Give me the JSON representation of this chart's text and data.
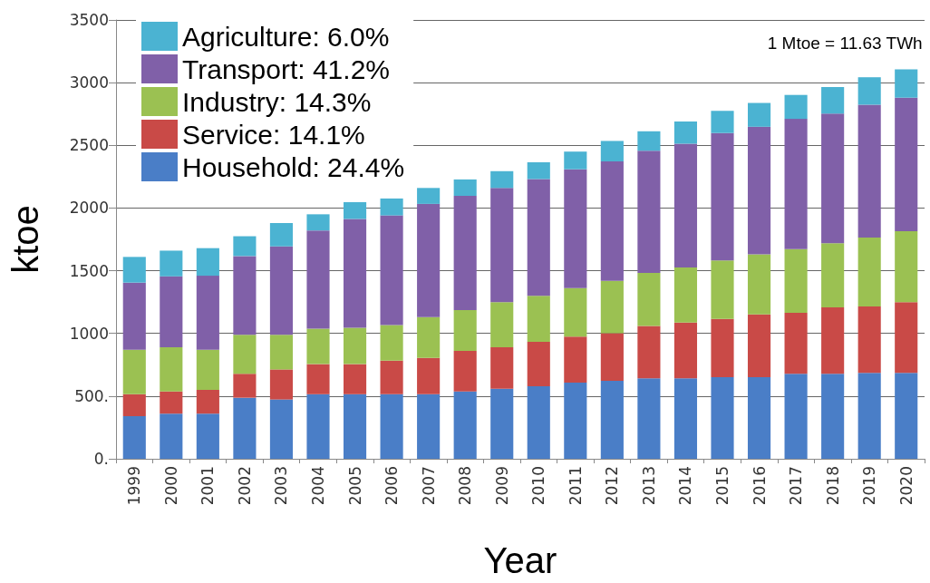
{
  "chart_data": {
    "type": "bar",
    "stacked": true,
    "xlabel": "Year",
    "ylabel": "ktoe",
    "annotations": [
      "1 Mtoe = 11.63 TWh"
    ],
    "categories": [
      "1999",
      "2000",
      "2001",
      "2002",
      "2003",
      "2004",
      "2005",
      "2006",
      "2007",
      "2008",
      "2009",
      "2010",
      "2011",
      "2012",
      "2013",
      "2014",
      "2015",
      "2016",
      "2017",
      "2018",
      "2019",
      "2020"
    ],
    "series": [
      {
        "name": "Household: 24.4%",
        "color": "#4a7ec7",
        "values": [
          340,
          360,
          360,
          487,
          473,
          515,
          515,
          515,
          515,
          537,
          558,
          579,
          607,
          621,
          642,
          642,
          650,
          650,
          678,
          678,
          685,
          685
        ]
      },
      {
        "name": "Service: 14.1%",
        "color": "#c94a47",
        "values": [
          175,
          177,
          190,
          191,
          240,
          240,
          240,
          268,
          290,
          324,
          331,
          353,
          367,
          381,
          417,
          445,
          465,
          501,
          487,
          529,
          529,
          565
        ]
      },
      {
        "name": "Industry: 14.3%",
        "color": "#9bc152",
        "values": [
          355,
          353,
          320,
          310,
          275,
          283,
          290,
          283,
          325,
          325,
          361,
          367,
          388,
          417,
          424,
          438,
          466,
          480,
          508,
          513,
          551,
          565
        ]
      },
      {
        "name": "Transport: 41.2%",
        "color": "#8060a8",
        "values": [
          535,
          565,
          590,
          629,
          706,
          783,
          868,
          875,
          903,
          911,
          910,
          932,
          947,
          953,
          974,
          988,
          1017,
          1017,
          1038,
          1033,
          1059,
          1065
        ]
      },
      {
        "name": "Agriculture: 6.0%",
        "color": "#4bb3d2",
        "values": [
          205,
          205,
          220,
          158,
          186,
          129,
          134,
          135,
          127,
          131,
          134,
          134,
          141,
          163,
          155,
          177,
          177,
          190,
          191,
          212,
          219,
          226
        ]
      }
    ],
    "ylim": [
      0,
      3500
    ],
    "yticks": [
      {
        "value": 0,
        "label": "0."
      },
      {
        "value": 500,
        "label": "500."
      },
      1000,
      1500,
      2000,
      2500,
      3000,
      3500
    ],
    "grid": "y",
    "legend": "top left"
  }
}
